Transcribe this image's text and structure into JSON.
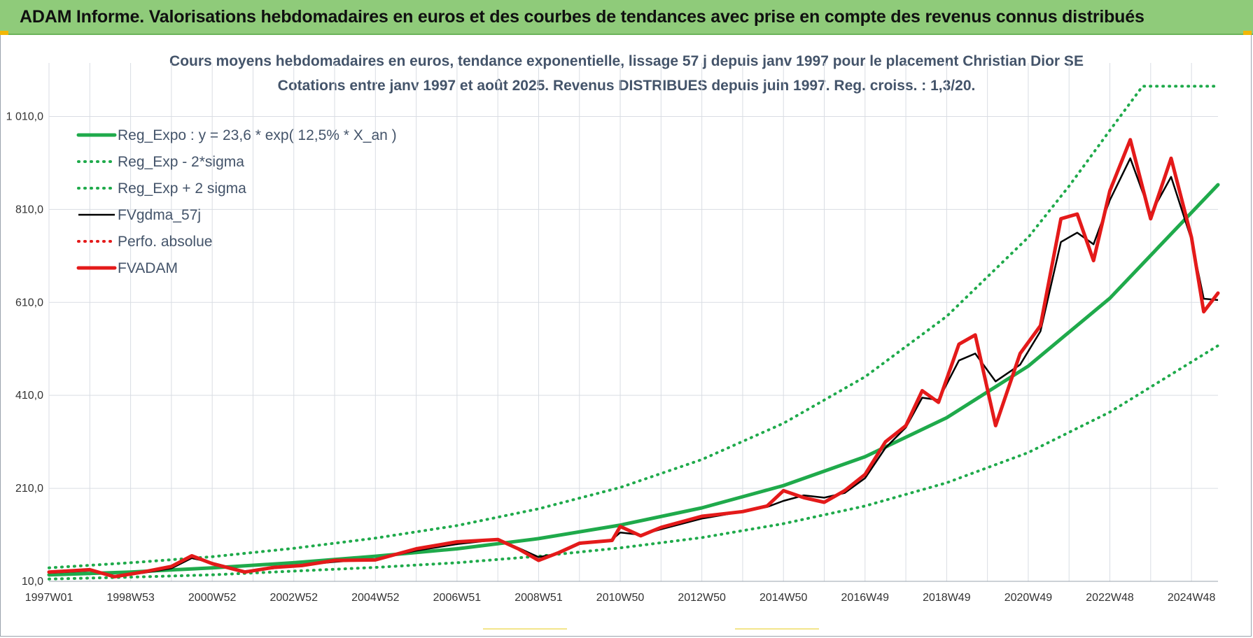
{
  "header": {
    "banner_title": "ADAM Informe. Valorisations hebdomadaires en euros et des courbes de tendances avec prise en compte des revenus connus distribués"
  },
  "colors": {
    "banner_bg": "#8fcb7a",
    "reg_expo": "#1faa4b",
    "sigma": "#1faa4b",
    "fvgdma": "#000000",
    "perfo": "#e41a1a",
    "fvadam": "#e41a1a",
    "grid": "#d9dde3"
  },
  "chart_data": {
    "type": "line",
    "title_line1": "Cours moyens hebdomadaires en euros, tendance exponentielle, lissage 57 j depuis janv 1997 pour le placement Christian Dior SE",
    "title_line2": "Cotations entre janv 1997 et août 2025. Revenus DISTRIBUES depuis juin 1997. Reg. croiss. : 1,3/20.",
    "xlabel": "",
    "ylabel": "",
    "ylim": [
      10,
      1110
    ],
    "xlim": [
      1997.0,
      2025.65
    ],
    "y_ticks": [
      10,
      210,
      410,
      610,
      810,
      1010
    ],
    "y_tick_labels": [
      "10,0",
      "210,0",
      "410,0",
      "610,0",
      "810,0",
      "1 010,0"
    ],
    "x_tick_labels": [
      {
        "label": "1997W01",
        "year": 1997.0
      },
      {
        "label": "1998W53",
        "year": 1999.0
      },
      {
        "label": "2000W52",
        "year": 2001.0
      },
      {
        "label": "2002W52",
        "year": 2003.0
      },
      {
        "label": "2004W52",
        "year": 2005.0
      },
      {
        "label": "2006W51",
        "year": 2007.0
      },
      {
        "label": "2008W51",
        "year": 2009.0
      },
      {
        "label": "2010W50",
        "year": 2011.0
      },
      {
        "label": "2012W50",
        "year": 2013.0
      },
      {
        "label": "2014W50",
        "year": 2015.0
      },
      {
        "label": "2016W49",
        "year": 2017.0
      },
      {
        "label": "2018W49",
        "year": 2019.0
      },
      {
        "label": "2020W49",
        "year": 2021.0
      },
      {
        "label": "2022W48",
        "year": 2023.0
      },
      {
        "label": "2024W48",
        "year": 2025.0
      }
    ],
    "grid": true,
    "legend_position": "top-left",
    "series": [
      {
        "name": "Reg_Expo : y = 23,6 * exp( 12,5% *  X_an )",
        "style": "solid-thick",
        "color": "#1faa4b",
        "x": [
          1997,
          1999,
          2001,
          2003,
          2005,
          2007,
          2009,
          2011,
          2013,
          2015,
          2017,
          2019,
          2021,
          2023,
          2025.65
        ],
        "y": [
          24,
          30,
          39,
          50,
          64,
          80,
          102,
          131,
          168,
          216,
          278,
          362,
          473,
          619,
          863
        ]
      },
      {
        "name": "Reg_Exp - 2*sigma",
        "style": "dotted",
        "color": "#1faa4b",
        "x": [
          1997,
          1999,
          2001,
          2003,
          2005,
          2007,
          2009,
          2011,
          2013,
          2015,
          2017,
          2019,
          2021,
          2023,
          2025.65
        ],
        "y": [
          15,
          19,
          24,
          32,
          40,
          50,
          64,
          82,
          104,
          134,
          172,
          222,
          287,
          374,
          517
        ]
      },
      {
        "name": "Reg_Exp + 2 sigma",
        "style": "dotted",
        "color": "#1faa4b",
        "x": [
          1997,
          1999,
          2001,
          2003,
          2005,
          2007,
          2009,
          2011,
          2013,
          2015,
          2017,
          2019,
          2021,
          2022,
          2023,
          2023.8,
          2025.65
        ],
        "y": [
          39,
          50,
          63,
          81,
          103,
          130,
          166,
          212,
          272,
          350,
          450,
          580,
          750,
          860,
          980,
          1075,
          1075
        ]
      },
      {
        "name": "FVgdma_57j",
        "style": "solid",
        "color": "#000000",
        "x": [
          1997.0,
          1998.0,
          1998.6,
          1999.3,
          2000.0,
          2000.5,
          2001.0,
          2001.8,
          2002.5,
          2003.2,
          2004.0,
          2005.0,
          2006.0,
          2007.0,
          2008.0,
          2008.5,
          2009.0,
          2009.5,
          2010.0,
          2010.8,
          2011.0,
          2011.5,
          2012.0,
          2013.0,
          2014.0,
          2014.6,
          2015.0,
          2015.5,
          2016.0,
          2016.5,
          2017.0,
          2017.5,
          2018.0,
          2018.4,
          2018.8,
          2019.3,
          2019.7,
          2020.2,
          2020.8,
          2021.3,
          2021.8,
          2022.2,
          2022.6,
          2023.0,
          2023.5,
          2024.0,
          2024.5,
          2025.0,
          2025.3,
          2025.65
        ],
        "y": [
          28,
          33,
          22,
          28,
          38,
          60,
          50,
          32,
          38,
          45,
          52,
          58,
          76,
          90,
          100,
          82,
          62,
          70,
          90,
          100,
          115,
          110,
          122,
          145,
          160,
          170,
          183,
          195,
          190,
          200,
          232,
          297,
          341,
          405,
          400,
          485,
          500,
          440,
          476,
          548,
          740,
          760,
          735,
          830,
          920,
          800,
          880,
          745,
          618,
          615
        ]
      },
      {
        "name": "Perfo. absolue",
        "style": "dotted",
        "color": "#e41a1a",
        "x": [],
        "y": []
      },
      {
        "name": "FVADAM",
        "style": "solid-thick",
        "color": "#e41a1a",
        "x": [
          1997.0,
          1998.0,
          1998.6,
          1999.3,
          2000.0,
          2000.5,
          2001.0,
          2001.8,
          2002.5,
          2003.2,
          2004.0,
          2005.0,
          2006.0,
          2007.0,
          2008.0,
          2008.5,
          2009.0,
          2009.5,
          2010.0,
          2010.8,
          2011.0,
          2011.5,
          2012.0,
          2013.0,
          2014.0,
          2014.6,
          2015.0,
          2015.5,
          2016.0,
          2016.5,
          2017.0,
          2017.5,
          2018.0,
          2018.4,
          2018.8,
          2019.3,
          2019.7,
          2020.2,
          2020.8,
          2021.3,
          2021.8,
          2022.2,
          2022.6,
          2023.0,
          2023.5,
          2024.0,
          2024.5,
          2025.0,
          2025.3,
          2025.65
        ],
        "y": [
          30,
          35,
          20,
          30,
          42,
          65,
          48,
          30,
          40,
          44,
          55,
          56,
          80,
          95,
          100,
          80,
          55,
          72,
          92,
          98,
          128,
          108,
          126,
          150,
          160,
          172,
          205,
          190,
          180,
          205,
          240,
          310,
          345,
          420,
          395,
          520,
          540,
          345,
          500,
          560,
          790,
          800,
          700,
          850,
          960,
          790,
          920,
          750,
          590,
          630
        ]
      }
    ]
  }
}
